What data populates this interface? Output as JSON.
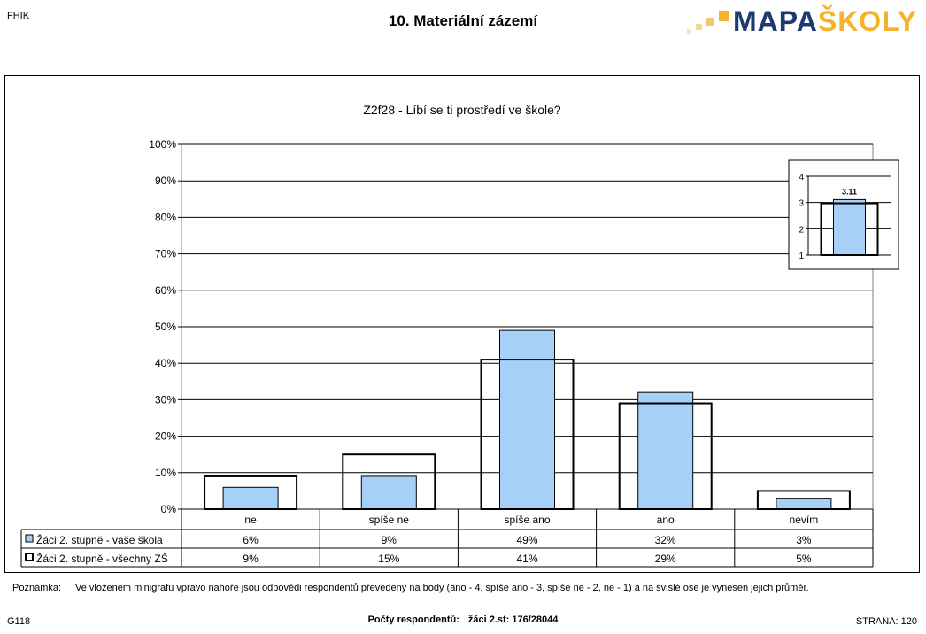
{
  "header": {
    "school_code": "FHIK",
    "title": "10. Materiální zázemí",
    "logo": {
      "text_part1": "MAPA",
      "text_part2": "ŠKOLY"
    }
  },
  "colors": {
    "series1_fill": "#a7d0f8",
    "series2_fill": "none",
    "outline": "#000000",
    "logo_navy": "#1f3a70",
    "logo_orange": "#f6b32a"
  },
  "chart_data": {
    "type": "bar",
    "title": "Z2f28 - Líbí se ti prostředí ve škole?",
    "y_axis": {
      "min": 0,
      "max": 100,
      "step": 10,
      "unit": "%",
      "ticks": [
        "0%",
        "10%",
        "20%",
        "30%",
        "40%",
        "50%",
        "60%",
        "70%",
        "80%",
        "90%",
        "100%"
      ]
    },
    "categories": [
      "ne",
      "spíše ne",
      "spíše ano",
      "ano",
      "nevím"
    ],
    "series": [
      {
        "name": "Žáci 2. stupně - vaše škola",
        "values": [
          6,
          9,
          49,
          32,
          3
        ],
        "labels": [
          "6%",
          "9%",
          "49%",
          "32%",
          "3%"
        ]
      },
      {
        "name": "Žáci 2. stupně - všechny ZŠ",
        "values": [
          9,
          15,
          41,
          29,
          5
        ],
        "labels": [
          "9%",
          "15%",
          "41%",
          "29%",
          "5%"
        ]
      }
    ],
    "inset": {
      "y_axis": {
        "min": 1,
        "max": 4,
        "ticks": [
          "1",
          "2",
          "3",
          "4"
        ]
      },
      "school_value": 3.11,
      "school_label": "3.11",
      "all_value": 2.97
    },
    "grid": true,
    "legend": "data table below chart"
  },
  "note": {
    "label": "Poznámka:",
    "text": "Ve vloženém minigrafu vpravo nahoře jsou odpovědi respondentů převedeny na body (ano - 4, spíše ano - 3, spíše ne - 2, ne - 1) a na svislé ose je vynesen jejich průměr."
  },
  "footer": {
    "left": "G118",
    "respondents_label": "Počty respondentů:",
    "respondents_value": "žáci 2.st: 176/28044",
    "right": "STRANA: 120"
  }
}
